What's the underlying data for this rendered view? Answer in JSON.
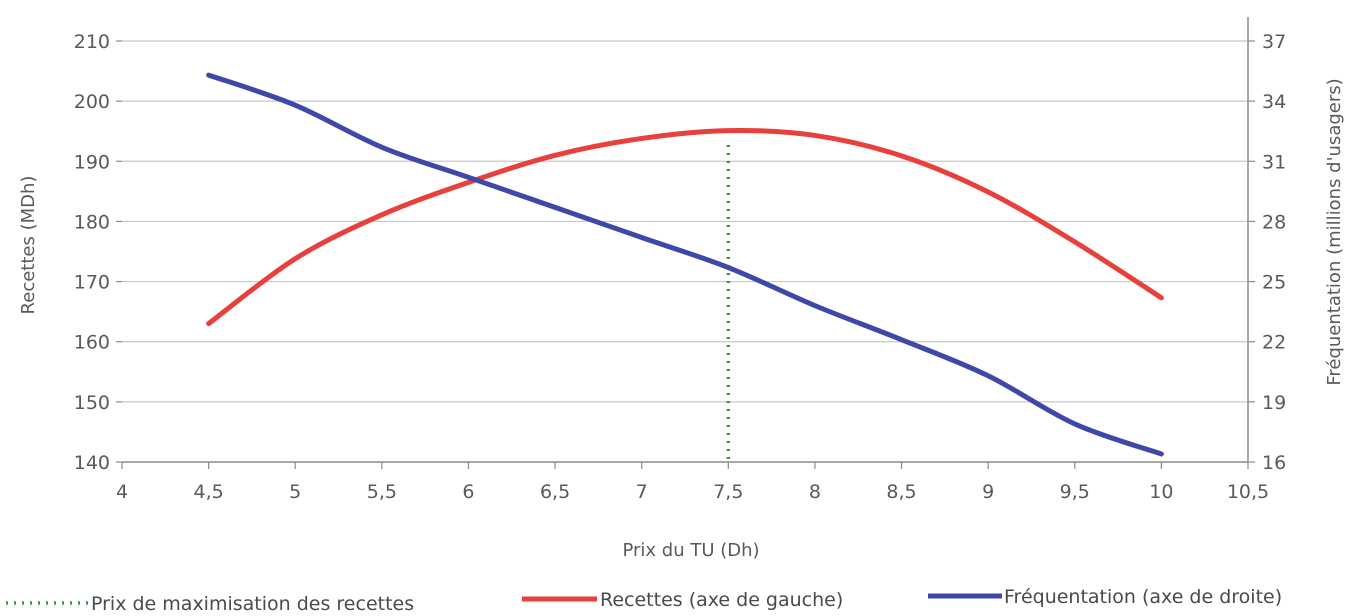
{
  "chart_data": {
    "type": "line",
    "xlabel": "Prix du TU (Dh)",
    "ylabel": "Recettes (MDh)",
    "y2label": "Fréquentation (millions d'usagers)",
    "xlim": [
      4,
      10.5
    ],
    "ylim": [
      140,
      210
    ],
    "y2lim": [
      16,
      37
    ],
    "x_ticks": [
      "4",
      "4,5",
      "5",
      "5,5",
      "6",
      "6,5",
      "7",
      "7,5",
      "8",
      "8,5",
      "9",
      "9,5",
      "10",
      "10,5"
    ],
    "y_ticks": [
      "140",
      "150",
      "160",
      "170",
      "180",
      "190",
      "200",
      "210"
    ],
    "y2_ticks": [
      "16",
      "19",
      "22",
      "25",
      "28",
      "31",
      "34",
      "37"
    ],
    "grid": true,
    "legend_position": "bottom",
    "colors": {
      "recettes": "#e8403c",
      "frequentation": "#3f48a8",
      "prix_max": "#3a9a3a",
      "grid": "#c8c8c8",
      "axis": "#8c8c8c"
    },
    "series": [
      {
        "name": "Recettes (axe de gauche)",
        "axis": "left",
        "x": [
          4.5,
          5,
          5.5,
          6,
          6.5,
          7,
          7.5,
          8,
          8.5,
          9,
          9.5,
          10
        ],
        "values": [
          163,
          173.8,
          181.1,
          186.5,
          191,
          193.8,
          195.1,
          194.3,
          190.9,
          184.9,
          176.6,
          167.3
        ]
      },
      {
        "name": "Fréquentation (axe de droite)",
        "axis": "right",
        "x": [
          4.5,
          5,
          5.5,
          6,
          6.5,
          7,
          7.5,
          8,
          8.5,
          9,
          9.5,
          10
        ],
        "values": [
          35.3,
          33.8,
          31.7,
          30.2,
          28.7,
          27.2,
          25.7,
          23.8,
          22.1,
          20.3,
          17.9,
          16.4
        ]
      },
      {
        "name": "Prix de maximisation des recettes",
        "axis": "left",
        "style": "dotted",
        "x": [
          7.5,
          7.5
        ],
        "values": [
          140.5,
          193
        ]
      }
    ]
  }
}
